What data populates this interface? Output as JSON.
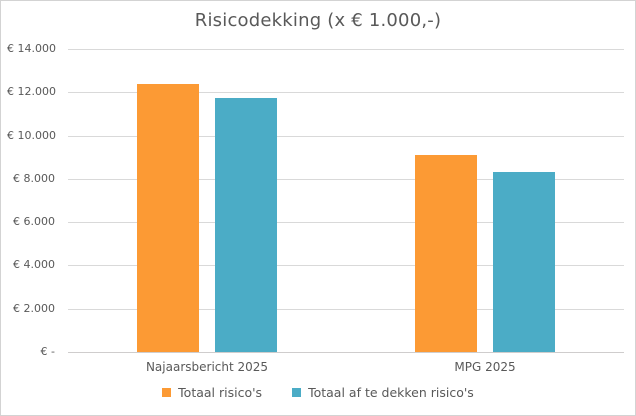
{
  "chart_data": {
    "type": "bar",
    "title": "Risicodekking (x € 1.000,-)",
    "categories": [
      "Najaarsbericht 2025",
      "MPG 2025"
    ],
    "series": [
      {
        "name": "Totaal risico's",
        "color": "#FC9A34",
        "values": [
          12400,
          9100
        ]
      },
      {
        "name": "Totaal af te dekken risico's",
        "color": "#4BACC6",
        "values": [
          11750,
          8300
        ]
      }
    ],
    "ylim": [
      0,
      14000
    ],
    "yticks": [
      {
        "value": 0,
        "label": "€ -"
      },
      {
        "value": 2000,
        "label": "€ 2.000"
      },
      {
        "value": 4000,
        "label": "€ 4.000"
      },
      {
        "value": 6000,
        "label": "€ 6.000"
      },
      {
        "value": 8000,
        "label": "€ 8.000"
      },
      {
        "value": 10000,
        "label": "€ 10.000"
      },
      {
        "value": 12000,
        "label": "€ 12.000"
      },
      {
        "value": 14000,
        "label": "€ 14.000"
      }
    ],
    "grid": true,
    "legend_position": "bottom"
  },
  "colors": {
    "text": "#595959",
    "gridline": "#D9D9D9",
    "axis_line": "#CFCDCD",
    "frame_border": "#D3D3D3",
    "background": "#FFFFFF"
  }
}
